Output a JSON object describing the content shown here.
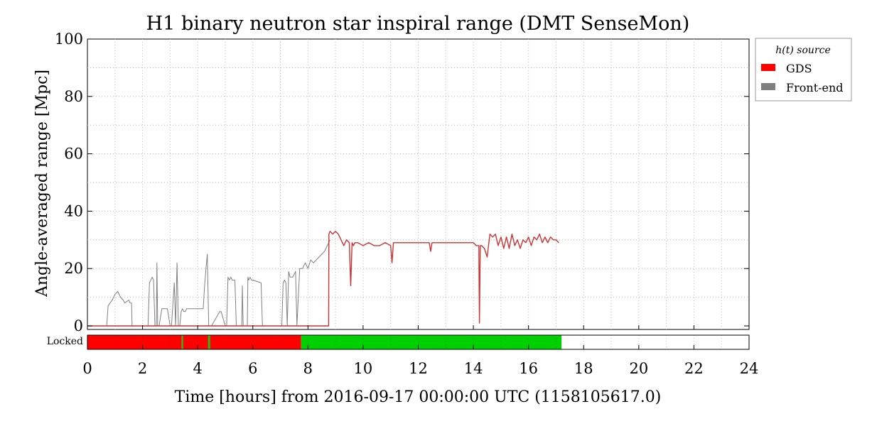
{
  "chart_data": {
    "type": "line",
    "title": "H1 binary neutron star inspiral range (DMT SenseMon)",
    "xlabel": "Time [hours] from 2016-09-17 00:00:00 UTC (1158105617.0)",
    "ylabel": "Angle-averaged range [Mpc]",
    "xlim": [
      0,
      24
    ],
    "ylim": [
      0,
      100
    ],
    "xticks": [
      "0",
      "2",
      "4",
      "6",
      "8",
      "10",
      "12",
      "14",
      "16",
      "18",
      "20",
      "22",
      "24"
    ],
    "yticks": [
      "0",
      "20",
      "40",
      "60",
      "80",
      "100"
    ],
    "grid": true,
    "legend": {
      "title": "h(t) source",
      "placement": "outside-top-right",
      "entries": [
        {
          "label": "GDS",
          "color": "#ff0000"
        },
        {
          "label": "Front-end",
          "color": "#808080"
        }
      ]
    },
    "series": [
      {
        "name": "Front-end",
        "color": "#808080",
        "x": [
          0,
          0.7,
          0.75,
          0.9,
          1.0,
          1.1,
          1.2,
          1.3,
          1.35,
          1.5,
          1.55,
          1.6,
          1.62,
          2.2,
          2.25,
          2.35,
          2.4,
          2.45,
          2.5,
          2.52,
          2.55,
          2.6,
          2.7,
          2.8,
          2.9,
          3.0,
          3.05,
          3.15,
          3.2,
          3.25,
          3.3,
          3.35,
          3.4,
          3.45,
          3.5,
          3.55,
          3.6,
          3.65,
          3.7,
          4.2,
          4.25,
          4.3,
          4.35,
          4.4,
          4.45,
          4.5,
          4.8,
          4.85,
          5.0,
          5.05,
          5.1,
          5.15,
          5.2,
          5.25,
          5.35,
          5.4,
          5.6,
          5.62,
          5.65,
          5.7,
          5.72,
          5.75,
          5.8,
          5.82,
          5.85,
          5.9,
          5.95,
          6.0,
          6.3,
          6.35,
          7.05,
          7.1,
          7.15,
          7.2,
          7.25,
          7.3,
          7.35,
          7.4,
          7.45,
          7.55,
          7.6,
          7.7,
          7.8,
          7.9,
          8.0,
          8.1,
          8.2,
          8.3,
          8.4,
          8.5,
          8.6,
          8.7,
          8.8
        ],
        "y": [
          0,
          0,
          7,
          9,
          11,
          12,
          10,
          9,
          8,
          9,
          8,
          8,
          0,
          0,
          15,
          17,
          16,
          0,
          0,
          22,
          0,
          0,
          6,
          6,
          6,
          0,
          0,
          15,
          0,
          22,
          0,
          0,
          5,
          6,
          5,
          5,
          6,
          6,
          6,
          6,
          14,
          20,
          25,
          0,
          0,
          0,
          5,
          5,
          0,
          0,
          17,
          16,
          17,
          16,
          16,
          0,
          0,
          14,
          0,
          0,
          0,
          0,
          0,
          17,
          16,
          17,
          16,
          16,
          15,
          0,
          0,
          15,
          16,
          15,
          0,
          19,
          17,
          17,
          17,
          19,
          0,
          20,
          20,
          22,
          20,
          23,
          22,
          23,
          24,
          25,
          26,
          28,
          30
        ]
      },
      {
        "name": "GDS",
        "color": "#ff0000",
        "x": [
          0,
          8.75,
          8.76,
          8.8,
          8.9,
          9.0,
          9.1,
          9.2,
          9.3,
          9.4,
          9.5,
          9.55,
          9.6,
          9.65,
          9.7,
          9.8,
          10.0,
          10.2,
          10.4,
          10.6,
          10.8,
          11.0,
          11.05,
          11.1,
          11.2,
          11.4,
          11.6,
          11.8,
          12.0,
          12.2,
          12.4,
          12.45,
          12.5,
          12.6,
          12.8,
          13.0,
          13.2,
          13.4,
          13.6,
          13.8,
          14.0,
          14.1,
          14.2,
          14.22,
          14.25,
          14.3,
          14.4,
          14.5,
          14.55,
          14.6,
          14.7,
          14.8,
          14.9,
          15.0,
          15.1,
          15.2,
          15.3,
          15.4,
          15.5,
          15.6,
          15.7,
          15.8,
          15.9,
          16.0,
          16.1,
          16.2,
          16.3,
          16.4,
          16.5,
          16.6,
          16.7,
          16.8,
          16.9,
          17.0,
          17.1
        ],
        "y": [
          0,
          0,
          32,
          33,
          32,
          33,
          32,
          30,
          28,
          30,
          29,
          14,
          29,
          28,
          29,
          29,
          28,
          29,
          28,
          28,
          29,
          28,
          22,
          29,
          29,
          29,
          29,
          29,
          29,
          29,
          29,
          26,
          29,
          29,
          29,
          29,
          29,
          29,
          29,
          29,
          29,
          28,
          28,
          1,
          28,
          28,
          27,
          24,
          28,
          32,
          31,
          32,
          28,
          31,
          27,
          31,
          27,
          32,
          28,
          30,
          27,
          30,
          29,
          31,
          28,
          31,
          30,
          32,
          29,
          31,
          29,
          31,
          30,
          30,
          29
        ]
      }
    ],
    "state_bar": {
      "label": "Locked",
      "segments": [
        {
          "start": 0,
          "end": 3.42,
          "color": "#ff0000"
        },
        {
          "start": 3.42,
          "end": 3.47,
          "color": "#00d000"
        },
        {
          "start": 3.47,
          "end": 4.38,
          "color": "#ff0000"
        },
        {
          "start": 4.38,
          "end": 4.45,
          "color": "#00d000"
        },
        {
          "start": 4.45,
          "end": 7.75,
          "color": "#ff0000"
        },
        {
          "start": 7.75,
          "end": 17.2,
          "color": "#00d000"
        },
        {
          "start": 17.2,
          "end": 24,
          "color": "#ffffff"
        }
      ]
    }
  }
}
